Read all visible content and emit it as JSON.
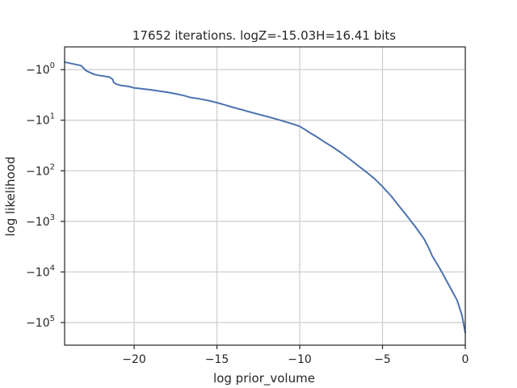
{
  "chart_data": {
    "type": "line",
    "title": "17652 iterations. logZ=-15.03H=16.41 bits",
    "xlabel": "log prior_volume",
    "ylabel": "log likelihood",
    "xlim": [
      -24.2,
      0
    ],
    "y_scale": "symlog",
    "grid": true,
    "line_color": "#4c72b0",
    "x_ticks": [
      {
        "value": -20,
        "label": "−20"
      },
      {
        "value": -15,
        "label": "−15"
      },
      {
        "value": -10,
        "label": "−10"
      },
      {
        "value": -5,
        "label": "−5"
      },
      {
        "value": 0,
        "label": "0"
      }
    ],
    "y_ticks": [
      {
        "value": -1,
        "base": "−10",
        "exp": "0"
      },
      {
        "value": -10,
        "base": "−10",
        "exp": "1"
      },
      {
        "value": -100,
        "base": "−10",
        "exp": "2"
      },
      {
        "value": -1000,
        "base": "−10",
        "exp": "3"
      },
      {
        "value": -10000,
        "base": "−10",
        "exp": "4"
      },
      {
        "value": -100000,
        "base": "−10",
        "exp": "5"
      }
    ],
    "series": [
      {
        "x": [
          -24.2,
          -23.2,
          -22.9,
          -22.4,
          -22.0,
          -21.5,
          -21.3,
          -21.25,
          -21.1,
          -20.8,
          -20.3,
          -20.0,
          -19.5,
          -19.0,
          -18.5,
          -18.0,
          -17.5,
          -17.0,
          -16.6,
          -16.2,
          -15.5,
          -15.0,
          -14.5,
          -14.0,
          -13.5,
          -13.0,
          -12.5,
          -12.0,
          -11.5,
          -11.0,
          -10.5,
          -10.0,
          -9.8,
          -9.7,
          -9.4,
          -9.0,
          -8.5,
          -8.0,
          -7.5,
          -7.0,
          -6.5,
          -6.0,
          -5.5,
          -5.0,
          -4.5,
          -4.0,
          -3.5,
          -3.0,
          -2.5,
          -2.2,
          -2.0,
          -1.5,
          -1.0,
          -0.5,
          -0.2,
          0.0
        ],
        "y": [
          -0.85,
          -0.92,
          -1.05,
          -1.25,
          -1.32,
          -1.4,
          -1.55,
          -1.75,
          -1.92,
          -2.05,
          -2.15,
          -2.3,
          -2.4,
          -2.5,
          -2.65,
          -2.8,
          -3.0,
          -3.25,
          -3.55,
          -3.7,
          -4.1,
          -4.5,
          -5.0,
          -5.6,
          -6.2,
          -6.9,
          -7.6,
          -8.4,
          -9.3,
          -10.4,
          -11.6,
          -13.2,
          -14.5,
          -15.2,
          -17.6,
          -21,
          -27,
          -34,
          -44,
          -58,
          -78,
          -104,
          -142,
          -205,
          -310,
          -500,
          -800,
          -1300,
          -2200,
          -3400,
          -4800,
          -9000,
          -18000,
          -36000,
          -72000,
          -160000
        ]
      }
    ]
  }
}
